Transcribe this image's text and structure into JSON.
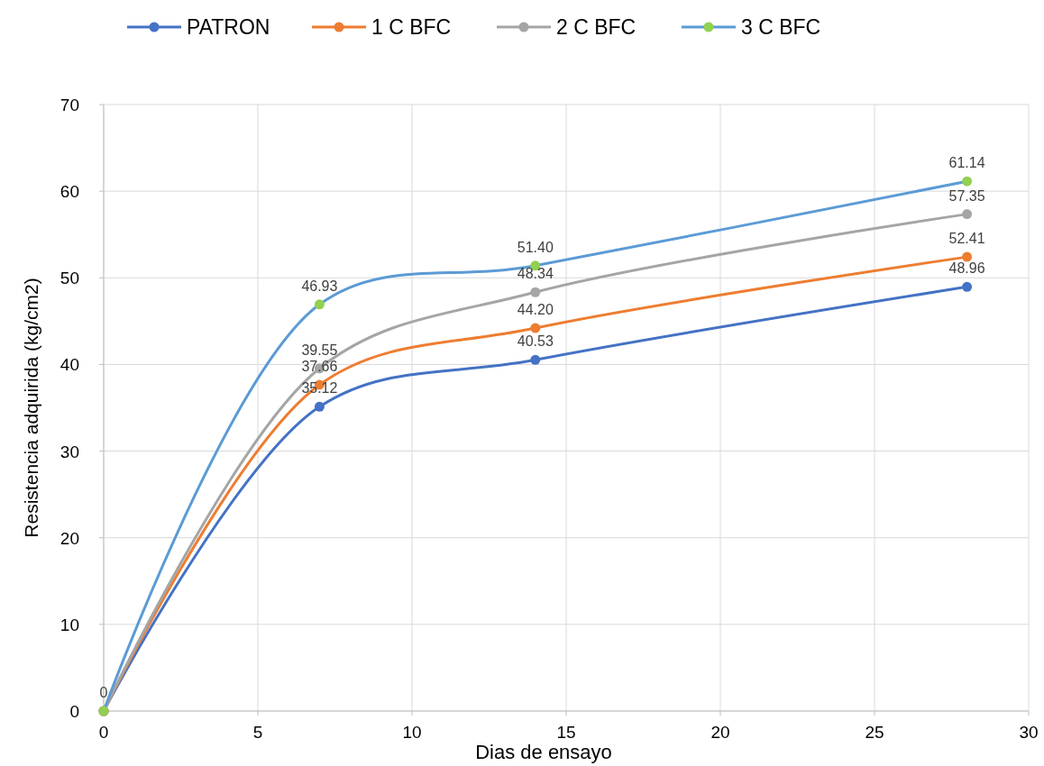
{
  "chart_data": {
    "type": "line",
    "xlabel": "Dias de ensayo",
    "ylabel": "Resistencia adquirida (kg/cm2)",
    "x": [
      0,
      7,
      14,
      28
    ],
    "xlim": [
      0,
      30
    ],
    "xticks": [
      0,
      5,
      10,
      15,
      20,
      25,
      30
    ],
    "ylim": [
      0,
      70
    ],
    "yticks": [
      0,
      10,
      20,
      30,
      40,
      50,
      60,
      70
    ],
    "grid": true,
    "legend": "top",
    "marker": "circle",
    "line_style": "solid",
    "series": [
      {
        "name": "PATRON",
        "color": "#4472c4",
        "values": [
          0,
          35.12,
          40.53,
          48.96
        ],
        "value_labels": [
          "0",
          "35.12",
          "40.53",
          "48.96"
        ]
      },
      {
        "name": "1 C BFC",
        "color": "#ed7d31",
        "values": [
          0,
          37.66,
          44.2,
          52.41
        ],
        "value_labels": [
          null,
          "37.66",
          "44.20",
          "52.41"
        ]
      },
      {
        "name": "2 C BFC",
        "color": "#a5a5a5",
        "values": [
          0,
          39.55,
          48.34,
          57.35
        ],
        "value_labels": [
          null,
          "39.55",
          "48.34",
          "57.35"
        ]
      },
      {
        "name": "3 C BFC",
        "color": "#5b9bd5",
        "colors": [
          "#92d050",
          "#92d050",
          "#92d050",
          "#92d050"
        ],
        "values": [
          0,
          46.93,
          51.4,
          61.14
        ],
        "value_labels": [
          null,
          "46.93",
          "51.40",
          "61.14"
        ]
      }
    ]
  }
}
